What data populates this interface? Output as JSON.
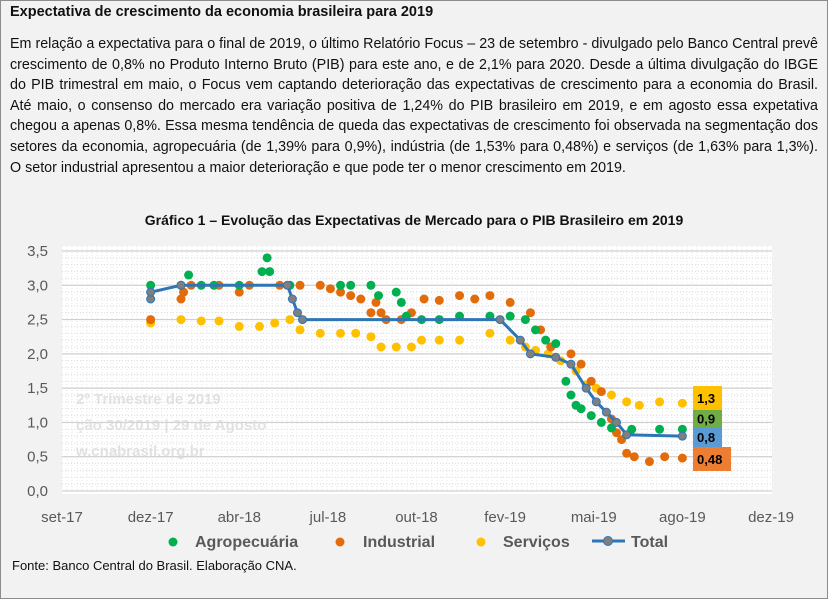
{
  "header": {
    "title": "Expectativa de crescimento da economia brasileira para 2019"
  },
  "paragraph": "Em relação a expectativa para o final de 2019, o último Relatório Focus – 23 de setembro - divulgado pelo Banco Central prevê crescimento de 0,8% no Produto Interno Bruto (PIB) para este ano, e de 2,1% para 2020. Desde a última divulgação do IBGE do PIB trimestral em maio, o Focus vem captando deterioração das expectativas de crescimento para a economia do Brasil. Até maio, o consenso do mercado era variação positiva de 1,24% do PIB brasileiro em 2019, e em agosto essa expetativa chegou a apenas 0,8%. Essa mesma tendência de queda das expectativas de crescimento foi observada na segmentação dos setores da economia, agropecuária (de 1,39% para 0,9%), indústria (de 1,53% para 0,48%) e serviços (de 1,63% para 1,3%). O setor industrial apresentou a maior deterioração e que pode ter o menor crescimento em 2019.",
  "watermark": {
    "line1": "2º Trimestre de 2019",
    "line2": "ção 30/2019 | 29 de Agosto",
    "line3": "w.cnabrasil.org.br"
  },
  "source": "Fonte: Banco Central do Brasil. Elaboração CNA.",
  "chart_data": {
    "type": "scatter",
    "title": "Gráfico 1 – Evolução das Expectativas de Mercado para o PIB Brasileiro em 2019",
    "xlabel": "",
    "ylabel": "",
    "x_unit": "months since set-17",
    "xlim": [
      0,
      28
    ],
    "ylim": [
      0,
      3.5
    ],
    "x_ticks": [
      {
        "x": 0,
        "label": "set-17"
      },
      {
        "x": 3.5,
        "label": "dez-17"
      },
      {
        "x": 7,
        "label": "abr-18"
      },
      {
        "x": 10.5,
        "label": "jul-18"
      },
      {
        "x": 14,
        "label": "out-18"
      },
      {
        "x": 17.5,
        "label": "fev-19"
      },
      {
        "x": 21,
        "label": "mai-19"
      },
      {
        "x": 24.5,
        "label": "ago-19"
      },
      {
        "x": 28,
        "label": "dez-19"
      }
    ],
    "y_ticks": [
      {
        "y": 0,
        "label": "0,0"
      },
      {
        "y": 0.5,
        "label": "0,5"
      },
      {
        "y": 1,
        "label": "1,0"
      },
      {
        "y": 1.5,
        "label": "1,5"
      },
      {
        "y": 2,
        "label": "2,0"
      },
      {
        "y": 2.5,
        "label": "2,5"
      },
      {
        "y": 3,
        "label": "3,0"
      },
      {
        "y": 3.5,
        "label": "3,5"
      }
    ],
    "grid": true,
    "legend_position": "bottom",
    "series": [
      {
        "name": "Agropecuária",
        "kind": "dots",
        "color": "#00b050",
        "points": [
          [
            3.5,
            3.0
          ],
          [
            4.7,
            3.0
          ],
          [
            5.0,
            3.15
          ],
          [
            5.5,
            3.0
          ],
          [
            6.0,
            3.0
          ],
          [
            7.0,
            3.0
          ],
          [
            7.9,
            3.2
          ],
          [
            8.1,
            3.4
          ],
          [
            8.2,
            3.2
          ],
          [
            9.0,
            3.0
          ],
          [
            11.0,
            3.0
          ],
          [
            11.4,
            3.0
          ],
          [
            12.2,
            3.0
          ],
          [
            12.5,
            2.85
          ],
          [
            13.2,
            2.9
          ],
          [
            13.4,
            2.75
          ],
          [
            13.6,
            2.55
          ],
          [
            14.2,
            2.5
          ],
          [
            14.9,
            2.5
          ],
          [
            15.7,
            2.55
          ],
          [
            16.9,
            2.55
          ],
          [
            17.7,
            2.55
          ],
          [
            18.3,
            2.5
          ],
          [
            18.7,
            2.35
          ],
          [
            19.1,
            2.2
          ],
          [
            19.5,
            2.15
          ],
          [
            19.9,
            1.6
          ],
          [
            20.1,
            1.4
          ],
          [
            20.3,
            1.25
          ],
          [
            20.5,
            1.2
          ],
          [
            20.9,
            1.1
          ],
          [
            21.3,
            1.0
          ],
          [
            21.7,
            0.92
          ],
          [
            22.5,
            0.9
          ],
          [
            23.6,
            0.9
          ],
          [
            24.5,
            0.9
          ]
        ]
      },
      {
        "name": "Industrial",
        "kind": "dots",
        "color": "#e36c0a",
        "points": [
          [
            3.5,
            2.5
          ],
          [
            4.7,
            2.8
          ],
          [
            4.8,
            2.9
          ],
          [
            5.1,
            3.0
          ],
          [
            6.2,
            3.0
          ],
          [
            7.0,
            2.9
          ],
          [
            7.4,
            3.0
          ],
          [
            8.6,
            3.0
          ],
          [
            9.4,
            3.0
          ],
          [
            10.2,
            3.0
          ],
          [
            10.6,
            2.95
          ],
          [
            11.0,
            2.9
          ],
          [
            11.4,
            2.85
          ],
          [
            11.8,
            2.8
          ],
          [
            12.2,
            2.6
          ],
          [
            12.4,
            2.75
          ],
          [
            12.6,
            2.6
          ],
          [
            12.8,
            2.5
          ],
          [
            13.4,
            2.5
          ],
          [
            13.8,
            2.6
          ],
          [
            14.3,
            2.8
          ],
          [
            14.9,
            2.78
          ],
          [
            15.7,
            2.85
          ],
          [
            16.3,
            2.8
          ],
          [
            16.9,
            2.85
          ],
          [
            17.7,
            2.75
          ],
          [
            18.5,
            2.6
          ],
          [
            18.9,
            2.35
          ],
          [
            19.3,
            2.1
          ],
          [
            20.1,
            2.0
          ],
          [
            20.5,
            1.85
          ],
          [
            20.9,
            1.6
          ],
          [
            21.3,
            1.45
          ],
          [
            21.7,
            1.05
          ],
          [
            21.9,
            0.85
          ],
          [
            22.1,
            0.75
          ],
          [
            22.3,
            0.55
          ],
          [
            22.6,
            0.5
          ],
          [
            23.2,
            0.43
          ],
          [
            23.8,
            0.5
          ],
          [
            24.5,
            0.48
          ]
        ]
      },
      {
        "name": "Serviços",
        "kind": "dots",
        "color": "#ffc000",
        "points": [
          [
            3.5,
            2.45
          ],
          [
            4.7,
            2.5
          ],
          [
            5.5,
            2.48
          ],
          [
            6.2,
            2.48
          ],
          [
            7.0,
            2.4
          ],
          [
            7.8,
            2.4
          ],
          [
            8.4,
            2.45
          ],
          [
            9.0,
            2.5
          ],
          [
            9.4,
            2.35
          ],
          [
            10.2,
            2.3
          ],
          [
            11.0,
            2.3
          ],
          [
            11.6,
            2.3
          ],
          [
            12.2,
            2.25
          ],
          [
            12.6,
            2.1
          ],
          [
            13.2,
            2.1
          ],
          [
            13.8,
            2.1
          ],
          [
            14.2,
            2.2
          ],
          [
            14.9,
            2.2
          ],
          [
            15.7,
            2.2
          ],
          [
            16.9,
            2.3
          ],
          [
            17.7,
            2.2
          ],
          [
            18.3,
            2.1
          ],
          [
            18.7,
            2.05
          ],
          [
            19.2,
            2.0
          ],
          [
            19.7,
            1.9
          ],
          [
            20.3,
            1.75
          ],
          [
            20.7,
            1.55
          ],
          [
            21.1,
            1.5
          ],
          [
            21.7,
            1.4
          ],
          [
            22.3,
            1.3
          ],
          [
            22.8,
            1.25
          ],
          [
            23.6,
            1.3
          ],
          [
            24.5,
            1.28
          ]
        ]
      },
      {
        "name": "Total",
        "kind": "line",
        "color": "#2e75b6",
        "marker_color": "#7f7f7f",
        "points": [
          [
            3.5,
            2.8
          ],
          [
            3.5,
            2.9
          ],
          [
            4.7,
            3.0
          ],
          [
            8.9,
            3.0
          ],
          [
            9.1,
            2.8
          ],
          [
            9.3,
            2.6
          ],
          [
            9.5,
            2.5
          ],
          [
            17.3,
            2.5
          ],
          [
            18.1,
            2.2
          ],
          [
            18.5,
            2.0
          ],
          [
            19.5,
            1.95
          ],
          [
            20.1,
            1.85
          ],
          [
            20.7,
            1.5
          ],
          [
            21.1,
            1.3
          ],
          [
            21.5,
            1.15
          ],
          [
            21.9,
            1.0
          ],
          [
            22.3,
            0.82
          ],
          [
            24.5,
            0.8
          ]
        ]
      }
    ],
    "end_labels": [
      {
        "series": "Serviços",
        "text": "1,3",
        "color": "#ffc000"
      },
      {
        "series": "Agropecuária",
        "text": "0,9",
        "color": "#70ad47"
      },
      {
        "series": "Total",
        "text": "0,8",
        "color": "#5b9bd5"
      },
      {
        "series": "Industrial",
        "text": "0,48",
        "color": "#ed7d31"
      }
    ]
  }
}
